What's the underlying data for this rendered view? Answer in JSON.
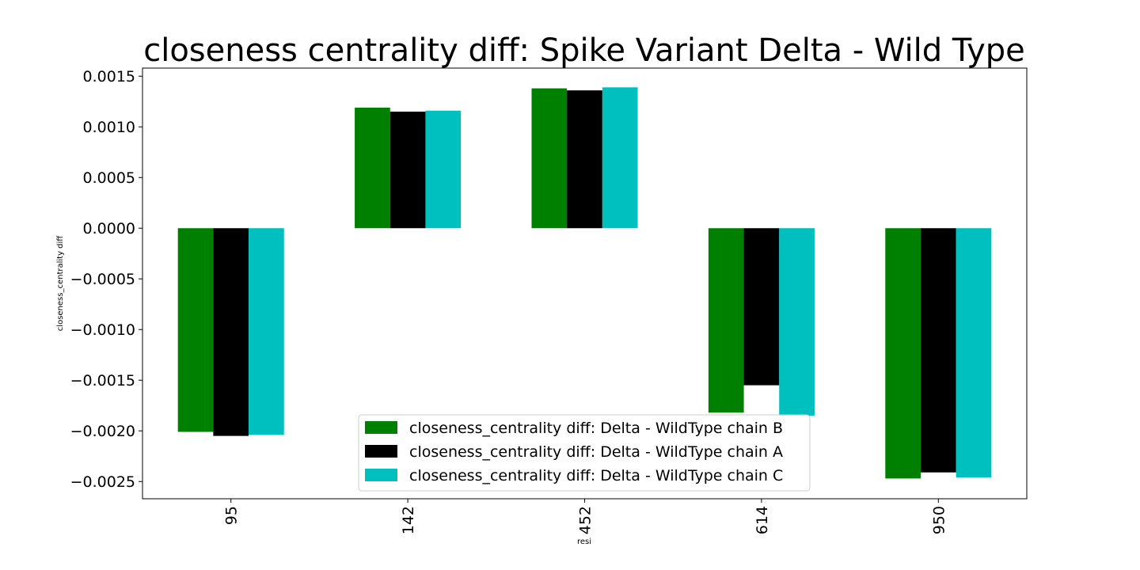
{
  "chart_data": {
    "type": "bar",
    "title": "closeness centrality diff: Spike Variant Delta - Wild Type",
    "xlabel": "resi",
    "ylabel": "closeness_centrality diff",
    "categories": [
      "95",
      "142",
      "452",
      "614",
      "950"
    ],
    "ylim": [
      -0.00267,
      0.00158
    ],
    "yticks": [
      0.0015,
      0.001,
      0.0005,
      0.0,
      -0.0005,
      -0.001,
      -0.0015,
      -0.002,
      -0.0025
    ],
    "ytick_labels": [
      "0.0015",
      "0.0010",
      "0.0005",
      "0.0000",
      "−0.0005",
      "−0.0010",
      "−0.0015",
      "−0.0020",
      "−0.0025"
    ],
    "grid": false,
    "legend_position": "lower center",
    "series": [
      {
        "name": "closeness_centrality diff: Delta - WildType chain B",
        "color": "#008000",
        "values": [
          -0.00201,
          0.00119,
          0.00138,
          -0.00182,
          -0.00247
        ]
      },
      {
        "name": "closeness_centrality diff: Delta - WildType chain A",
        "color": "#000000",
        "values": [
          -0.00205,
          0.00115,
          0.00136,
          -0.00155,
          -0.00241
        ]
      },
      {
        "name": "closeness_centrality diff: Delta - WildType chain C",
        "color": "#00bfbf",
        "values": [
          -0.00204,
          0.00116,
          0.00139,
          -0.00185,
          -0.00246
        ]
      }
    ]
  }
}
